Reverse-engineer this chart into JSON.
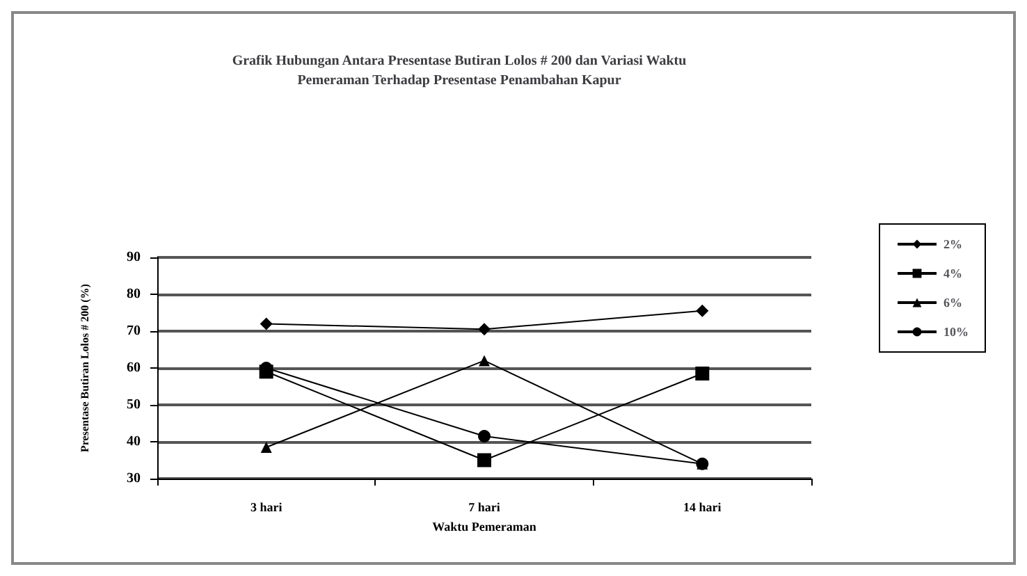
{
  "chart_data": {
    "type": "line",
    "title": "Grafik Hubungan Antara Presentase Butiran Lolos # 200 dan Variasi Waktu\nPemeraman Terhadap Presentase Penambahan Kapur",
    "xlabel": "Waktu Pemeraman",
    "ylabel": "Presentase Butiran Lolos # 200 (%)",
    "categories": [
      "3 hari",
      "7 hari",
      "14 hari"
    ],
    "ylim": [
      30,
      90
    ],
    "yticks": [
      30,
      40,
      50,
      60,
      70,
      80,
      90
    ],
    "grid": "y",
    "legend": "right",
    "series": [
      {
        "name": "2%",
        "color": "#000000",
        "marker": "diamond",
        "values": [
          72,
          70.5,
          75.5
        ]
      },
      {
        "name": "4%",
        "color": "#000000",
        "marker": "square",
        "values": [
          59,
          35,
          58.5
        ]
      },
      {
        "name": "6%",
        "color": "#000000",
        "marker": "triangle",
        "values": [
          38.5,
          62,
          34
        ]
      },
      {
        "name": "10%",
        "color": "#000000",
        "marker": "circle",
        "values": [
          60,
          41.5,
          34
        ]
      }
    ]
  }
}
